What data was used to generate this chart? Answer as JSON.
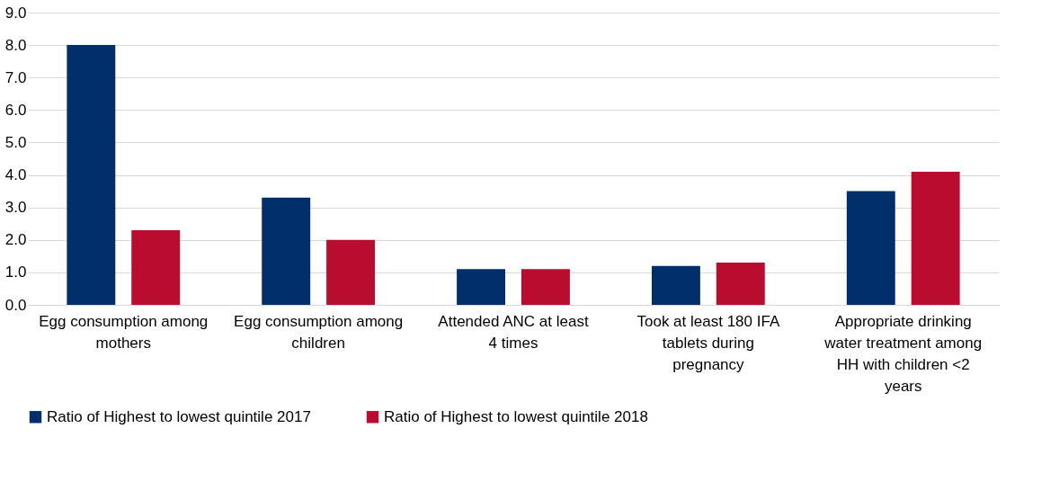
{
  "chart_data": {
    "type": "bar",
    "categories": [
      "Egg consumption among mothers",
      "Egg consumption among children",
      "Attended ANC at least 4 times",
      "Took at least 180 IFA tablets during pregnancy",
      "Appropriate drinking water treatment among HH with children <2 years"
    ],
    "series": [
      {
        "name": "Ratio of Highest to lowest quintile 2017",
        "color": "#002f6c",
        "values": [
          8.0,
          3.3,
          1.1,
          1.2,
          3.5
        ]
      },
      {
        "name": "Ratio of Highest to lowest quintile 2018",
        "color": "#ba0c2f",
        "values": [
          2.3,
          2.0,
          1.1,
          1.3,
          4.1
        ]
      }
    ],
    "ylim": [
      0,
      9
    ],
    "yticks": [
      {
        "value": 0,
        "label": "0.0"
      },
      {
        "value": 1,
        "label": "1.0"
      },
      {
        "value": 2,
        "label": "2.0"
      },
      {
        "value": 3,
        "label": "3.0"
      },
      {
        "value": 4,
        "label": "4.0"
      },
      {
        "value": 5,
        "label": "5.0"
      },
      {
        "value": 6,
        "label": "6.0"
      },
      {
        "value": 7,
        "label": "7.0"
      },
      {
        "value": 8,
        "label": "8.0"
      },
      {
        "value": 9,
        "label": "9.0"
      }
    ],
    "grid": "y",
    "legend": "bottom"
  }
}
